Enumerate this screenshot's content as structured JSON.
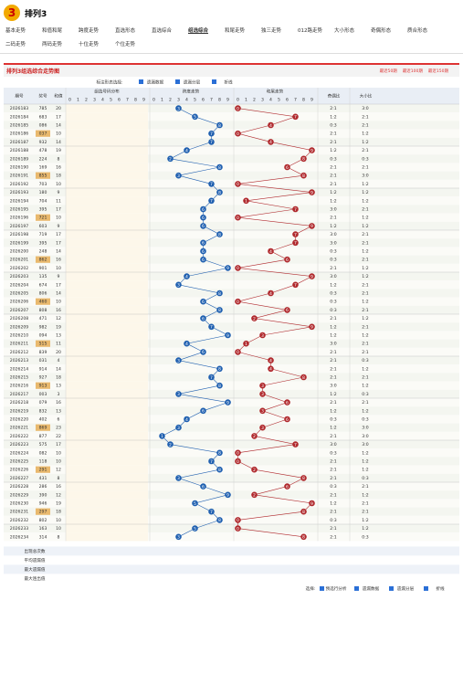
{
  "header": {
    "logo": "3",
    "title": "排列3"
  },
  "nav": [
    "基本走势",
    "和值和尾",
    "跨度走势",
    "直选形态",
    "直选综合",
    "组选综合",
    "和尾走势",
    "独三走势",
    "012路走势",
    "大小形态",
    "奇偶形态",
    "质合形态",
    "二码走势",
    "两码走势",
    "十位走势",
    "个位走势"
  ],
  "nav_active": 5,
  "page_title": "排列3组选综合走势图",
  "ranges": [
    "最近50期",
    "最近100期",
    "最近150期"
  ],
  "controls": {
    "label": "标注形态选择:",
    "options": [
      "遗漏数据",
      "遗漏分层",
      "折线"
    ]
  },
  "table": {
    "headers": {
      "issue": "期号",
      "number": "奖号",
      "sum": "和值",
      "dist": "组选号码分布",
      "span": "跨度走势",
      "tail": "和尾走势",
      "oe": "奇偶比",
      "bs": "大小比"
    },
    "digit_headers": [
      0,
      1,
      2,
      3,
      4,
      5,
      6,
      7,
      8,
      9
    ],
    "rows": [
      {
        "issue": "2026183",
        "number": "785",
        "sum": 20,
        "span": 3,
        "tail": 0,
        "oe": "2:1",
        "bs": "3:0"
      },
      {
        "issue": "2026184",
        "number": "683",
        "sum": 17,
        "span": 5,
        "tail": 7,
        "oe": "1:2",
        "bs": "2:1"
      },
      {
        "issue": "2026185",
        "number": "086",
        "sum": 14,
        "span": 8,
        "tail": 4,
        "oe": "0:3",
        "bs": "2:1"
      },
      {
        "issue": "2026186",
        "number": "037",
        "sum": 10,
        "span": 7,
        "tail": 0,
        "oe": "2:1",
        "bs": "1:2"
      },
      {
        "issue": "2026187",
        "number": "932",
        "sum": 14,
        "span": 7,
        "tail": 4,
        "oe": "2:1",
        "bs": "1:2"
      },
      {
        "issue": "2026188",
        "number": "478",
        "sum": 19,
        "span": 4,
        "tail": 9,
        "oe": "1:2",
        "bs": "2:1"
      },
      {
        "issue": "2026189",
        "number": "224",
        "sum": 8,
        "span": 2,
        "tail": 8,
        "oe": "0:3",
        "bs": "0:3"
      },
      {
        "issue": "2026190",
        "number": "169",
        "sum": 16,
        "span": 8,
        "tail": 6,
        "oe": "2:1",
        "bs": "2:1"
      },
      {
        "issue": "2026191",
        "number": "855",
        "sum": 18,
        "span": 3,
        "tail": 8,
        "oe": "2:1",
        "bs": "3:0"
      },
      {
        "issue": "2026192",
        "number": "703",
        "sum": 10,
        "span": 7,
        "tail": 0,
        "oe": "2:1",
        "bs": "1:2"
      },
      {
        "issue": "2026193",
        "number": "180",
        "sum": 9,
        "span": 8,
        "tail": 9,
        "oe": "1:2",
        "bs": "1:2"
      },
      {
        "issue": "2026194",
        "number": "704",
        "sum": 11,
        "span": 7,
        "tail": 1,
        "oe": "1:2",
        "bs": "1:2"
      },
      {
        "issue": "2026195",
        "number": "395",
        "sum": 17,
        "span": 6,
        "tail": 7,
        "oe": "3:0",
        "bs": "2:1"
      },
      {
        "issue": "2026196",
        "number": "721",
        "sum": 10,
        "span": 6,
        "tail": 0,
        "oe": "2:1",
        "bs": "1:2"
      },
      {
        "issue": "2026197",
        "number": "603",
        "sum": 9,
        "span": 6,
        "tail": 9,
        "oe": "1:2",
        "bs": "1:2"
      },
      {
        "issue": "2026198",
        "number": "719",
        "sum": 17,
        "span": 8,
        "tail": 7,
        "oe": "3:0",
        "bs": "2:1"
      },
      {
        "issue": "2026199",
        "number": "395",
        "sum": 17,
        "span": 6,
        "tail": 7,
        "oe": "3:0",
        "bs": "2:1"
      },
      {
        "issue": "2026200",
        "number": "248",
        "sum": 14,
        "span": 6,
        "tail": 4,
        "oe": "0:3",
        "bs": "1:2"
      },
      {
        "issue": "2026201",
        "number": "862",
        "sum": 16,
        "span": 6,
        "tail": 6,
        "oe": "0:3",
        "bs": "2:1"
      },
      {
        "issue": "2026202",
        "number": "901",
        "sum": 10,
        "span": 9,
        "tail": 0,
        "oe": "2:1",
        "bs": "1:2"
      },
      {
        "issue": "2026203",
        "number": "135",
        "sum": 9,
        "span": 4,
        "tail": 9,
        "oe": "3:0",
        "bs": "1:2"
      },
      {
        "issue": "2026204",
        "number": "674",
        "sum": 17,
        "span": 3,
        "tail": 7,
        "oe": "1:2",
        "bs": "2:1"
      },
      {
        "issue": "2026205",
        "number": "806",
        "sum": 14,
        "span": 8,
        "tail": 4,
        "oe": "0:3",
        "bs": "2:1"
      },
      {
        "issue": "2026206",
        "number": "460",
        "sum": 10,
        "span": 6,
        "tail": 0,
        "oe": "0:3",
        "bs": "1:2"
      },
      {
        "issue": "2026207",
        "number": "808",
        "sum": 16,
        "span": 8,
        "tail": 6,
        "oe": "0:3",
        "bs": "2:1"
      },
      {
        "issue": "2026208",
        "number": "471",
        "sum": 12,
        "span": 6,
        "tail": 2,
        "oe": "2:1",
        "bs": "1:2"
      },
      {
        "issue": "2026209",
        "number": "982",
        "sum": 19,
        "span": 7,
        "tail": 9,
        "oe": "1:2",
        "bs": "2:1"
      },
      {
        "issue": "2026210",
        "number": "094",
        "sum": 13,
        "span": 9,
        "tail": 3,
        "oe": "1:2",
        "bs": "1:2"
      },
      {
        "issue": "2026211",
        "number": "515",
        "sum": 11,
        "span": 4,
        "tail": 1,
        "oe": "3:0",
        "bs": "2:1"
      },
      {
        "issue": "2026212",
        "number": "839",
        "sum": 20,
        "span": 6,
        "tail": 0,
        "oe": "2:1",
        "bs": "2:1"
      },
      {
        "issue": "2026213",
        "number": "031",
        "sum": 4,
        "span": 3,
        "tail": 4,
        "oe": "2:1",
        "bs": "0:3"
      },
      {
        "issue": "2026214",
        "number": "914",
        "sum": 14,
        "span": 8,
        "tail": 4,
        "oe": "2:1",
        "bs": "1:2"
      },
      {
        "issue": "2026215",
        "number": "927",
        "sum": 18,
        "span": 7,
        "tail": 8,
        "oe": "2:1",
        "bs": "2:1"
      },
      {
        "issue": "2026216",
        "number": "913",
        "sum": 13,
        "span": 8,
        "tail": 3,
        "oe": "3:0",
        "bs": "1:2"
      },
      {
        "issue": "2026217",
        "number": "003",
        "sum": 3,
        "span": 3,
        "tail": 3,
        "oe": "1:2",
        "bs": "0:3"
      },
      {
        "issue": "2026218",
        "number": "079",
        "sum": 16,
        "span": 9,
        "tail": 6,
        "oe": "2:1",
        "bs": "2:1"
      },
      {
        "issue": "2026219",
        "number": "832",
        "sum": 13,
        "span": 6,
        "tail": 3,
        "oe": "1:2",
        "bs": "1:2"
      },
      {
        "issue": "2026220",
        "number": "402",
        "sum": 6,
        "span": 4,
        "tail": 6,
        "oe": "0:3",
        "bs": "0:3"
      },
      {
        "issue": "2026221",
        "number": "869",
        "sum": 23,
        "span": 3,
        "tail": 3,
        "oe": "1:2",
        "bs": "3:0"
      },
      {
        "issue": "2026222",
        "number": "877",
        "sum": 22,
        "span": 1,
        "tail": 2,
        "oe": "2:1",
        "bs": "3:0"
      },
      {
        "issue": "2026223",
        "number": "575",
        "sum": 17,
        "span": 2,
        "tail": 7,
        "oe": "3:0",
        "bs": "3:0"
      },
      {
        "issue": "2026224",
        "number": "082",
        "sum": 10,
        "span": 8,
        "tail": 0,
        "oe": "0:3",
        "bs": "1:2"
      },
      {
        "issue": "2026225",
        "number": "118",
        "sum": 10,
        "span": 7,
        "tail": 0,
        "oe": "2:1",
        "bs": "1:2"
      },
      {
        "issue": "2026226",
        "number": "291",
        "sum": 12,
        "span": 8,
        "tail": 2,
        "oe": "2:1",
        "bs": "1:2"
      },
      {
        "issue": "2026227",
        "number": "431",
        "sum": 8,
        "span": 3,
        "tail": 8,
        "oe": "2:1",
        "bs": "0:3"
      },
      {
        "issue": "2026228",
        "number": "286",
        "sum": 16,
        "span": 6,
        "tail": 6,
        "oe": "0:3",
        "bs": "2:1"
      },
      {
        "issue": "2026229",
        "number": "390",
        "sum": 12,
        "span": 9,
        "tail": 2,
        "oe": "2:1",
        "bs": "1:2"
      },
      {
        "issue": "2026230",
        "number": "946",
        "sum": 19,
        "span": 5,
        "tail": 9,
        "oe": "1:2",
        "bs": "2:1"
      },
      {
        "issue": "2026231",
        "number": "297",
        "sum": 18,
        "span": 7,
        "tail": 8,
        "oe": "2:1",
        "bs": "2:1"
      },
      {
        "issue": "2026232",
        "number": "802",
        "sum": 10,
        "span": 8,
        "tail": 0,
        "oe": "0:3",
        "bs": "1:2"
      },
      {
        "issue": "2026233",
        "number": "163",
        "sum": 10,
        "span": 5,
        "tail": 0,
        "oe": "2:1",
        "bs": "1:2"
      },
      {
        "issue": "2026234",
        "number": "314",
        "sum": 8,
        "span": 3,
        "tail": 8,
        "oe": "2:1",
        "bs": "0:3"
      }
    ],
    "stats": [
      "出现总次数",
      "平均遗漏值",
      "最大遗漏值",
      "最大连出值"
    ]
  },
  "footer": {
    "label": "选择:",
    "options": [
      "预选行分析",
      "遗漏数据",
      "遗漏分层",
      "折线"
    ]
  }
}
